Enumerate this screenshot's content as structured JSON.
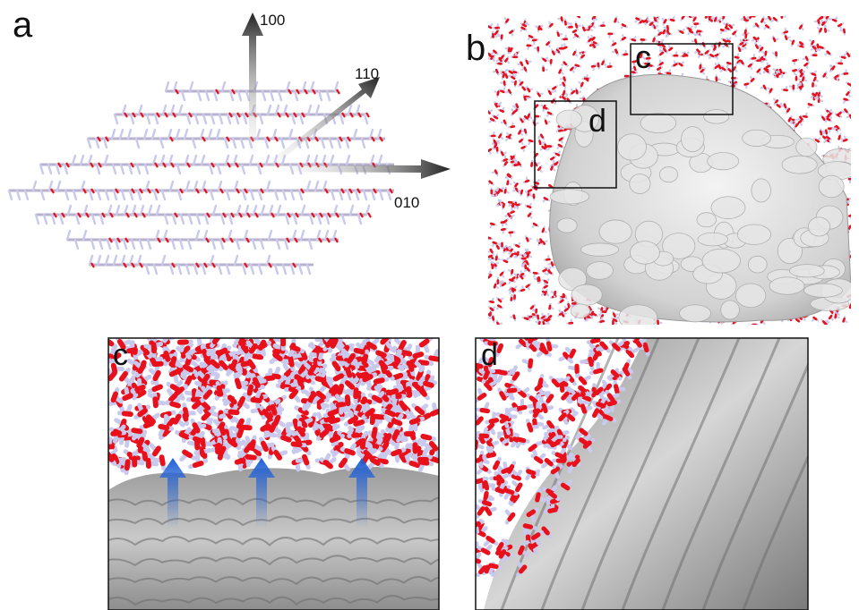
{
  "figure": {
    "panels": [
      {
        "id": "a",
        "label": "a"
      },
      {
        "id": "b",
        "label": "b"
      },
      {
        "id": "c",
        "label": "c"
      },
      {
        "id": "d",
        "label": "d"
      }
    ],
    "crystal_axes": [
      {
        "label": "100"
      },
      {
        "label": "110"
      },
      {
        "label": "010"
      }
    ],
    "inset_labels": {
      "c": "c",
      "d": "d"
    },
    "colors": {
      "oxygen": "#e8101a",
      "hydrogen": "#c9c9ee",
      "carbon": "#b9b2cc",
      "surface": "#bdbdbd",
      "surface_dark": "#8a8a8a",
      "arrow_blue": "#1f5fd6",
      "axis_arrow": "#222222",
      "frame": "#111111"
    },
    "icons": [
      "arrow-up-icon",
      "arrow-up-icon",
      "arrow-up-icon"
    ]
  }
}
